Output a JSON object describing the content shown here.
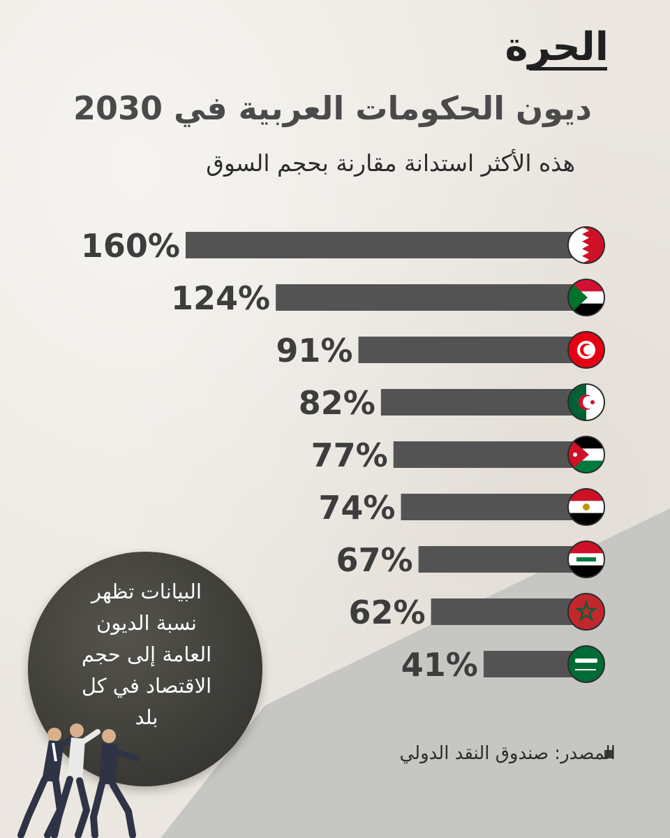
{
  "brand": {
    "logo_text": "الحرة"
  },
  "header": {
    "title": "ديون الحكومات العربية في 2030",
    "subtitle": "هذه الأكثر استدانة مقارنة بحجم السوق"
  },
  "colors": {
    "bar": "#535353",
    "label": "#3d3d3d",
    "background": "#ebe7e0",
    "slope": "#c6c6c2",
    "bubble": "#3f3e38"
  },
  "chart_data": {
    "type": "bar",
    "orientation": "horizontal",
    "categories": [
      "bahrain-flag-icon",
      "sudan-flag-icon",
      "tunisia-flag-icon",
      "algeria-flag-icon",
      "jordan-flag-icon",
      "egypt-flag-icon",
      "iraq-flag-icon",
      "morocco-flag-icon",
      "saudi-arabia-flag-icon"
    ],
    "values": [
      160,
      124,
      91,
      82,
      77,
      74,
      67,
      62,
      41
    ],
    "value_labels": [
      "160%",
      "124%",
      "91%",
      "82%",
      "77%",
      "74%",
      "67%",
      "62%",
      "41%"
    ],
    "unit": "%",
    "xlim": [
      0,
      160
    ],
    "grid": false,
    "legend": "none"
  },
  "note": {
    "text": [
      "البيانات تظهر",
      "نسبة الديون",
      "العامة إلى حجم",
      "الاقتصاد في كل",
      "بلد"
    ]
  },
  "source": {
    "text": "المصدر: صندوق النقد الدولي"
  }
}
